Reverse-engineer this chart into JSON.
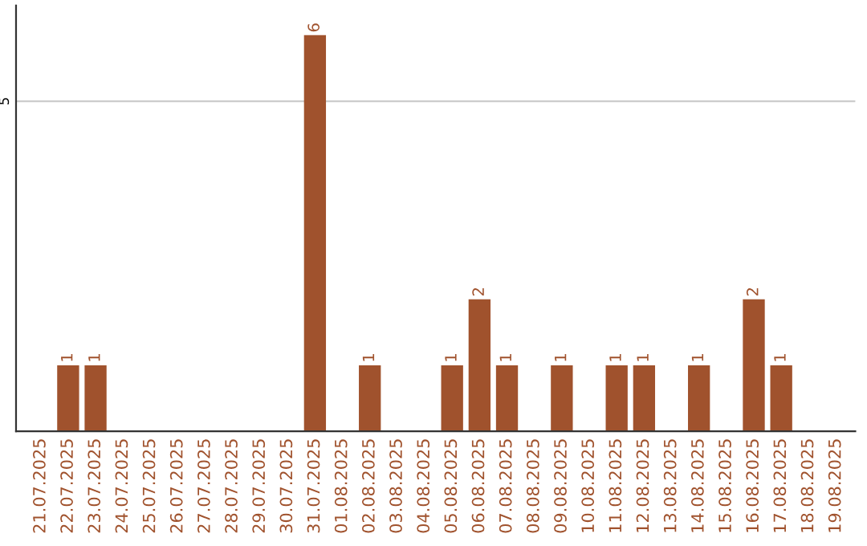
{
  "chart_data": {
    "type": "bar",
    "categories": [
      "21.07.2025",
      "22.07.2025",
      "23.07.2025",
      "24.07.2025",
      "25.07.2025",
      "26.07.2025",
      "27.07.2025",
      "28.07.2025",
      "29.07.2025",
      "30.07.2025",
      "31.07.2025",
      "01.08.2025",
      "02.08.2025",
      "03.08.2025",
      "04.08.2025",
      "05.08.2025",
      "06.08.2025",
      "07.08.2025",
      "08.08.2025",
      "09.08.2025",
      "10.08.2025",
      "11.08.2025",
      "12.08.2025",
      "13.08.2025",
      "14.08.2025",
      "15.08.2025",
      "16.08.2025",
      "17.08.2025",
      "18.08.2025",
      "19.08.2025"
    ],
    "values": [
      0,
      1,
      1,
      0,
      0,
      0,
      0,
      0,
      0,
      0,
      6,
      0,
      1,
      0,
      0,
      1,
      2,
      1,
      0,
      1,
      0,
      1,
      1,
      0,
      1,
      0,
      2,
      1,
      0,
      0
    ],
    "value_labels": [
      null,
      "1",
      "1",
      null,
      null,
      null,
      null,
      null,
      null,
      null,
      "6",
      null,
      "1",
      null,
      null,
      "1",
      "2",
      "1",
      null,
      "1",
      null,
      "1",
      "1",
      null,
      "1",
      null,
      "2",
      "1",
      null,
      null
    ],
    "color": "#a0522d",
    "ylim": [
      0,
      6.45
    ],
    "yticks": [
      5
    ],
    "grid": "y"
  }
}
